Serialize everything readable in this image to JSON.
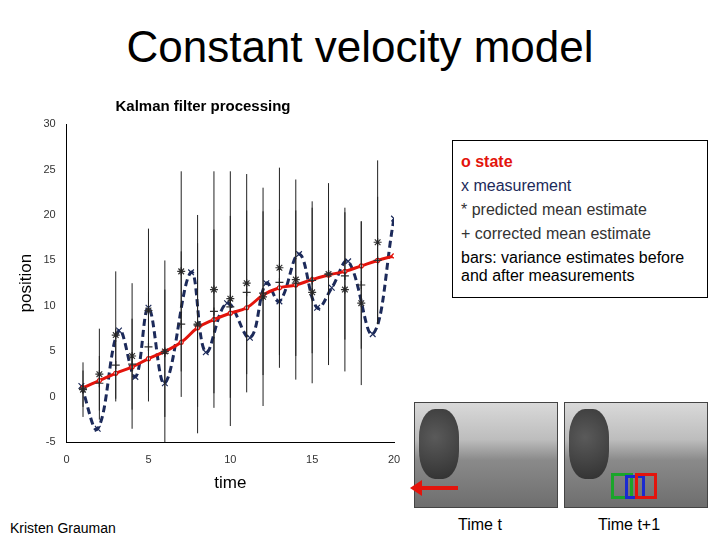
{
  "page": {
    "title": "Constant velocity model",
    "author": "Kristen Grauman",
    "image_captions": [
      "Time t",
      "Time t+1"
    ]
  },
  "chart_data": {
    "type": "scatter",
    "title": "Kalman filter processing",
    "x_label": "time",
    "y_label": "position",
    "xlim": [
      0,
      20
    ],
    "xticks": [
      0,
      5,
      10,
      15,
      20
    ],
    "ylim": [
      -5,
      30
    ],
    "yticks": [
      -5,
      0,
      5,
      10,
      15,
      20,
      25,
      30
    ],
    "grid": false,
    "annotations": [
      "bars: variance estimates before and after measurements"
    ],
    "series": [
      {
        "name": "o state",
        "type": "line",
        "color": "#e3140c",
        "marker": "circle",
        "line_style": "solid",
        "x": [
          1,
          2,
          3,
          4,
          5,
          6,
          7,
          8,
          9,
          10,
          11,
          12,
          13,
          14,
          15,
          16,
          17,
          18,
          19,
          20
        ],
        "values": [
          1.0,
          1.8,
          2.6,
          3.3,
          4.2,
          5.0,
          6.0,
          7.6,
          8.5,
          9.2,
          9.8,
          11.2,
          12.0,
          12.3,
          12.9,
          13.4,
          13.8,
          14.4,
          15.0,
          15.5
        ]
      },
      {
        "name": "x measurement",
        "type": "line",
        "color": "#1c2a5a",
        "marker": "x",
        "line_style": "dashed",
        "x": [
          0.9,
          1.9,
          3.2,
          4.2,
          5.0,
          6.0,
          7.6,
          8.5,
          9.8,
          11.2,
          12.2,
          13.0,
          14.2,
          15.3,
          16.2,
          17.2,
          18.7,
          20.0
        ],
        "values": [
          1.2,
          -3.5,
          7.3,
          2.2,
          9.8,
          1.5,
          13.7,
          4.9,
          10.3,
          6.5,
          12.5,
          10.5,
          15.7,
          9.8,
          12.0,
          14.9,
          6.9,
          19.6
        ]
      },
      {
        "name": "* predicted mean estimate",
        "type": "scatter",
        "color": "#333333",
        "marker": "star",
        "line_style": "none",
        "x": [
          1,
          2,
          3,
          4,
          5,
          6,
          7,
          8,
          9,
          10,
          11,
          12,
          13,
          14,
          15,
          16,
          17,
          18,
          19
        ],
        "values": [
          0.8,
          2.5,
          6.8,
          4.5,
          9.5,
          5.0,
          13.8,
          8.0,
          11.8,
          10.8,
          12.5,
          11.0,
          14.2,
          12.9,
          11.5,
          13.5,
          11.8,
          10.3,
          17.0
        ],
        "errors": [
          3,
          5,
          7,
          8,
          9,
          10,
          11,
          12,
          13,
          14,
          12,
          12,
          11,
          11,
          10,
          10,
          9,
          9,
          9
        ]
      },
      {
        "name": "+ corrected mean estimate",
        "type": "scatter",
        "color": "#333333",
        "marker": "plus",
        "line_style": "none",
        "x": [
          1,
          2,
          3,
          4,
          5,
          6,
          7,
          8,
          9,
          10,
          11,
          12,
          13,
          14,
          15,
          16,
          17,
          18,
          19
        ],
        "values": [
          0.9,
          1.5,
          3.5,
          3.6,
          5.5,
          4.8,
          8.0,
          7.9,
          9.4,
          9.9,
          11.5,
          11.4,
          12.6,
          12.5,
          12.8,
          13.5,
          13.3,
          12.3,
          15.0
        ],
        "errors": [
          2,
          3,
          4,
          5,
          6,
          7,
          8,
          9,
          9,
          10,
          9,
          9,
          8,
          8,
          8,
          7,
          7,
          7,
          7
        ]
      }
    ]
  }
}
